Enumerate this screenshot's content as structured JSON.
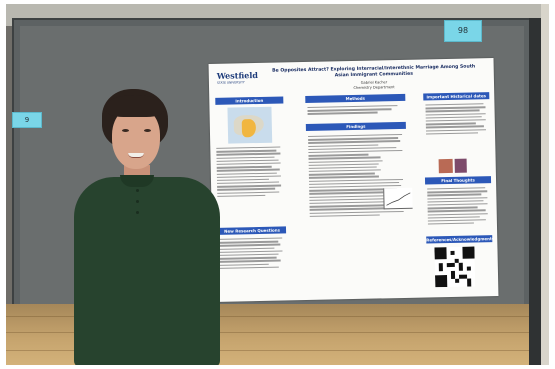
{
  "photo": {
    "tags": {
      "left": "9",
      "right": "98"
    }
  },
  "poster": {
    "logo": "Westfield",
    "logo_sub": "STATE UNIVERSITY",
    "title": "Be Opposites Attract? Exploring Interracial/Interethnic Marriage Among South Asian Immigrant Communities",
    "author": "Gabriel Kacher",
    "department": "Chemistry Department",
    "sections": {
      "introduction": "Introduction",
      "methods": "Methods",
      "findings": "Findings",
      "historical": "Important Historical dates",
      "final": "Final Thoughts",
      "new_research": "New Research Questions",
      "references": "References/Acknowledgments"
    }
  }
}
